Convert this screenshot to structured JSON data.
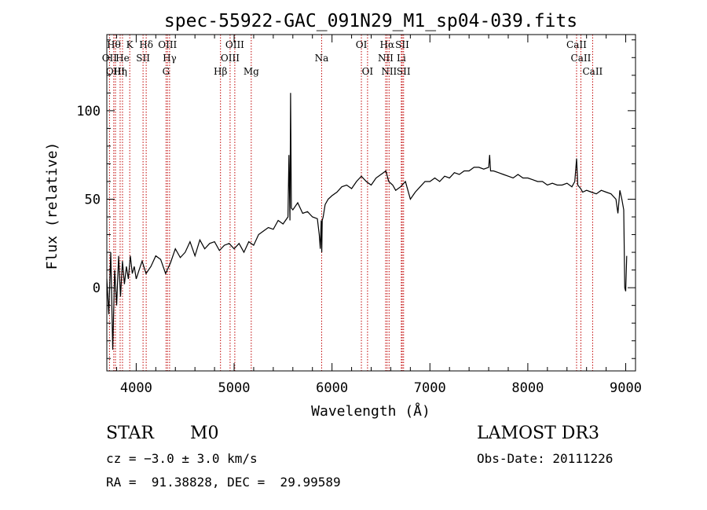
{
  "chart_data": {
    "type": "line",
    "title": "spec-55922-GAC_091N29_M1_sp04-039.fits",
    "xlabel": "Wavelength (Å)",
    "ylabel": "Flux (relative)",
    "xlim": [
      3700,
      9100
    ],
    "ylim": [
      -47,
      143
    ],
    "xticks": [
      4000,
      5000,
      6000,
      7000,
      8000,
      9000
    ],
    "yticks": [
      0,
      50,
      100
    ],
    "series": [
      {
        "name": "flux",
        "x": [
          3700,
          3720,
          3740,
          3760,
          3780,
          3800,
          3820,
          3840,
          3860,
          3880,
          3900,
          3920,
          3940,
          3960,
          3980,
          4000,
          4030,
          4060,
          4100,
          4150,
          4200,
          4250,
          4300,
          4350,
          4400,
          4450,
          4500,
          4550,
          4600,
          4650,
          4700,
          4750,
          4800,
          4850,
          4900,
          4950,
          5000,
          5050,
          5100,
          5150,
          5200,
          5250,
          5300,
          5350,
          5400,
          5450,
          5500,
          5550,
          5560,
          5570,
          5577,
          5585,
          5600,
          5650,
          5700,
          5750,
          5800,
          5850,
          5870,
          5880,
          5890,
          5895,
          5900,
          5910,
          5930,
          5960,
          6000,
          6050,
          6100,
          6150,
          6200,
          6250,
          6300,
          6350,
          6400,
          6450,
          6500,
          6550,
          6580,
          6620,
          6650,
          6700,
          6750,
          6800,
          6850,
          6900,
          6950,
          7000,
          7050,
          7100,
          7150,
          7200,
          7250,
          7300,
          7350,
          7400,
          7450,
          7500,
          7550,
          7600,
          7610,
          7620,
          7650,
          7700,
          7750,
          7800,
          7850,
          7900,
          7950,
          8000,
          8050,
          8100,
          8150,
          8200,
          8250,
          8300,
          8350,
          8400,
          8450,
          8480,
          8498,
          8510,
          8540,
          8560,
          8600,
          8650,
          8700,
          8750,
          8800,
          8850,
          8900,
          8920,
          8940,
          8960,
          8980,
          8990,
          9000,
          9010
        ],
        "y": [
          5,
          -15,
          20,
          -35,
          10,
          -10,
          18,
          -5,
          15,
          2,
          12,
          5,
          18,
          8,
          12,
          5,
          10,
          15,
          8,
          12,
          18,
          16,
          8,
          14,
          22,
          17,
          20,
          26,
          18,
          27,
          22,
          25,
          26,
          21,
          24,
          25,
          22,
          25,
          20,
          26,
          24,
          30,
          32,
          34,
          33,
          38,
          36,
          40,
          75,
          38,
          110,
          45,
          44,
          48,
          42,
          43,
          40,
          39,
          30,
          22,
          38,
          20,
          38,
          40,
          47,
          50,
          52,
          54,
          57,
          58,
          56,
          60,
          63,
          60,
          58,
          62,
          64,
          66,
          60,
          58,
          55,
          57,
          60,
          50,
          54,
          57,
          60,
          60,
          62,
          60,
          63,
          62,
          65,
          64,
          66,
          66,
          68,
          68,
          67,
          68,
          75,
          66,
          66,
          65,
          64,
          63,
          62,
          64,
          62,
          62,
          61,
          60,
          60,
          58,
          59,
          58,
          58,
          59,
          57,
          60,
          73,
          58,
          56,
          54,
          55,
          54,
          53,
          55,
          54,
          53,
          50,
          42,
          55,
          50,
          44,
          0,
          -2,
          18
        ]
      }
    ],
    "line_markers": [
      {
        "label": "OII",
        "x": 3727,
        "row": 2
      },
      {
        "label": "Hθ",
        "x": 3771,
        "row": 1
      },
      {
        "label": "OIII",
        "x": 3788,
        "row": 3
      },
      {
        "label": "Hη",
        "x": 3836,
        "row": 3
      },
      {
        "label": "He",
        "x": 3860,
        "row": 2
      },
      {
        "label": "K",
        "x": 3934,
        "row": 1
      },
      {
        "label": "SII",
        "x": 4070,
        "row": 2
      },
      {
        "label": "Hδ",
        "x": 4102,
        "row": 1
      },
      {
        "label": "OIII",
        "x": 4320,
        "row": 1
      },
      {
        "label": "Hγ",
        "x": 4341,
        "row": 2
      },
      {
        "label": "G",
        "x": 4305,
        "row": 3
      },
      {
        "label": "Hβ",
        "x": 4861,
        "row": 3
      },
      {
        "label": "OIII",
        "x": 4959,
        "row": 2
      },
      {
        "label": "OIII",
        "x": 5007,
        "row": 1
      },
      {
        "label": "Mg",
        "x": 5175,
        "row": 3
      },
      {
        "label": "Na",
        "x": 5894,
        "row": 2
      },
      {
        "label": "OI",
        "x": 6300,
        "row": 1
      },
      {
        "label": "OI",
        "x": 6363,
        "row": 3
      },
      {
        "label": "NII",
        "x": 6548,
        "row": 2
      },
      {
        "label": "Hα",
        "x": 6563,
        "row": 1
      },
      {
        "label": "NII",
        "x": 6583,
        "row": 3
      },
      {
        "label": "SII",
        "x": 6717,
        "row": 1
      },
      {
        "label": "Li",
        "x": 6708,
        "row": 2
      },
      {
        "label": "SII",
        "x": 6731,
        "row": 3
      },
      {
        "label": "CaII",
        "x": 8498,
        "row": 1
      },
      {
        "label": "CaII",
        "x": 8542,
        "row": 2
      },
      {
        "label": "CaII",
        "x": 8662,
        "row": 3
      }
    ]
  },
  "info": {
    "object_class": "STAR",
    "subclass": "M0",
    "survey": "LAMOST DR3",
    "cz": "cz = −3.0 ± 3.0 km/s",
    "obs_date": "Obs-Date: 20111226",
    "radec": "RA =  91.38828, DEC =  29.99589"
  }
}
